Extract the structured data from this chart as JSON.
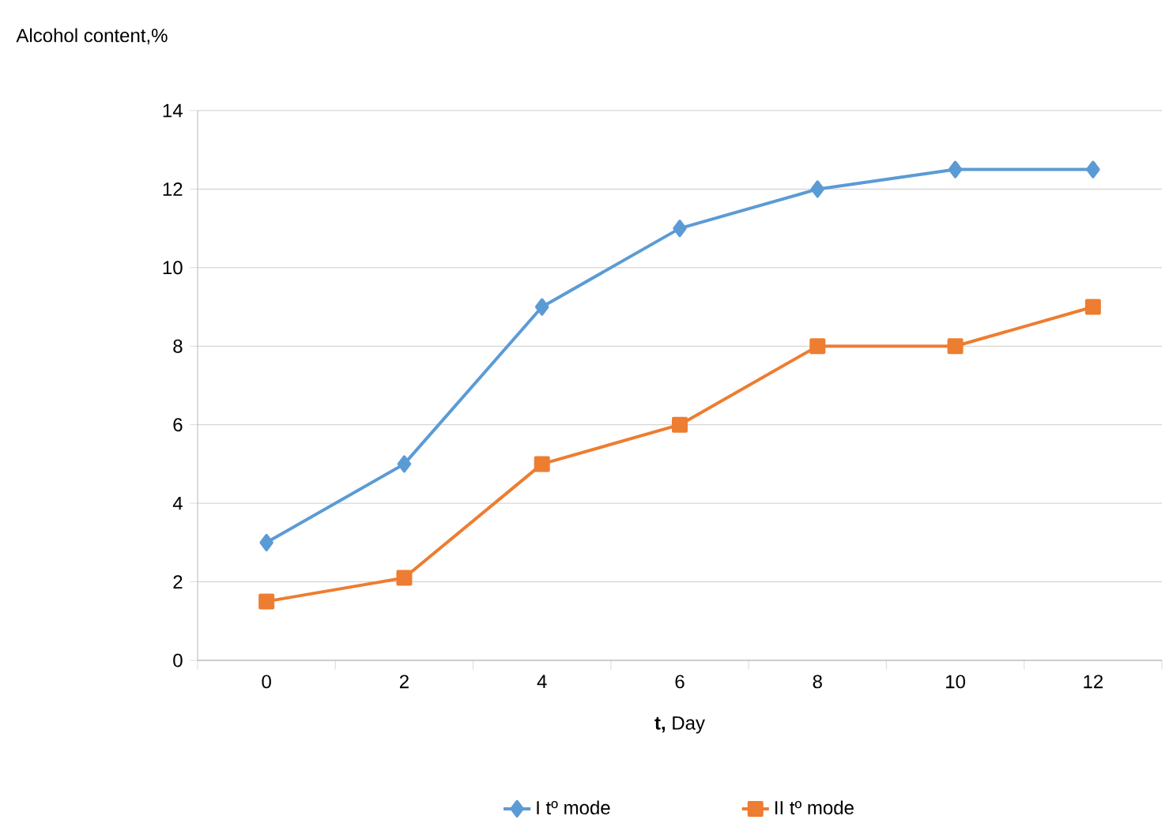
{
  "chart_data": {
    "type": "line",
    "ylabel": "Alcohol content,%",
    "xlabel": "**t,** Day",
    "categories": [
      "0",
      "2",
      "4",
      "6",
      "8",
      "10",
      "12"
    ],
    "series": [
      {
        "name": "I tº mode",
        "color": "#5b9bd5",
        "marker": "diamond",
        "values": [
          3,
          5,
          9,
          11,
          12,
          12.5,
          12.5
        ]
      },
      {
        "name": "II tº mode",
        "color": "#ed7d31",
        "marker": "square",
        "values": [
          1.5,
          2.1,
          5,
          6,
          8,
          8,
          9
        ]
      }
    ],
    "ylim": [
      0,
      14
    ],
    "yticks": [
      0,
      2,
      4,
      6,
      8,
      10,
      12,
      14
    ],
    "grid": "y",
    "legend": "bottom"
  }
}
